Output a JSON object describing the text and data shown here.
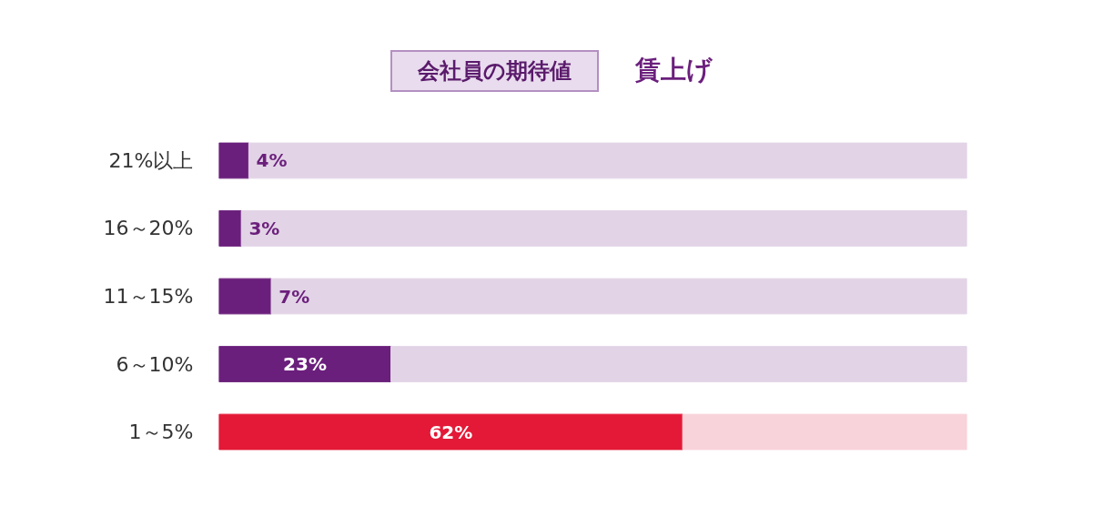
{
  "chart_data": {
    "type": "bar",
    "orientation": "horizontal",
    "stacked": true,
    "title": "会社員の期待値",
    "subtitle": "賃上げ",
    "categories": [
      "21%以上",
      "16～20%",
      "11～15%",
      "6～10%",
      "1～5%"
    ],
    "series": [
      {
        "colors": [
          "#6b1f7c",
          "#6b1f7c",
          "#6b1f7c",
          "#6b1f7c",
          "#e31937"
        ],
        "values": [
          4,
          3,
          7,
          23,
          62
        ],
        "value_labels": [
          "4%",
          "3%",
          "7%",
          "23%",
          "62%"
        ]
      },
      {
        "colors": [
          "#e2d4e6",
          "#e2d4e6",
          "#e2d4e6",
          "#e2d4e6",
          "#f9d3da"
        ],
        "values": [
          96,
          97,
          93,
          77,
          38
        ]
      }
    ],
    "xlim": [
      0,
      100
    ],
    "tick_labels": "y"
  }
}
